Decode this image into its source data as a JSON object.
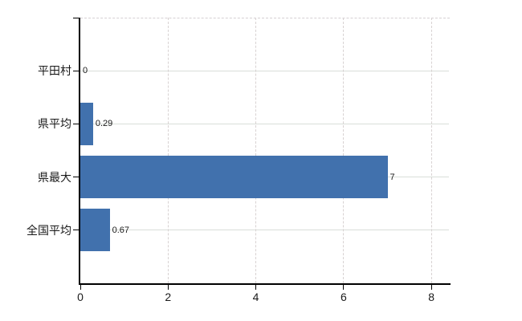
{
  "chart_data": {
    "type": "bar",
    "orientation": "horizontal",
    "title": "",
    "xlabel": "",
    "ylabel": "",
    "categories": [
      "平田村",
      "県平均",
      "県最大",
      "全国平均"
    ],
    "values": [
      0,
      0.29,
      7,
      0.67
    ],
    "value_labels": [
      "0",
      "0.29",
      "7",
      "0.67"
    ],
    "x_tick_values": [
      0,
      2,
      4,
      6,
      8
    ],
    "x_tick_labels": [
      "0",
      "2",
      "4",
      "6",
      "8"
    ],
    "xlim": [
      0,
      8.4
    ],
    "legend": "none",
    "grid": {
      "horizontal": "solid",
      "vertical": "dashed",
      "top_border": "dashed"
    },
    "colors": {
      "bar": "#4171ad",
      "axis": "#000000",
      "horizontal_gridline": "#d9ded9",
      "vertical_gridline": "#d8d2d2",
      "top_border": "#d6d0d3",
      "text": "#1a1a1a",
      "background": "#ffffff"
    }
  }
}
